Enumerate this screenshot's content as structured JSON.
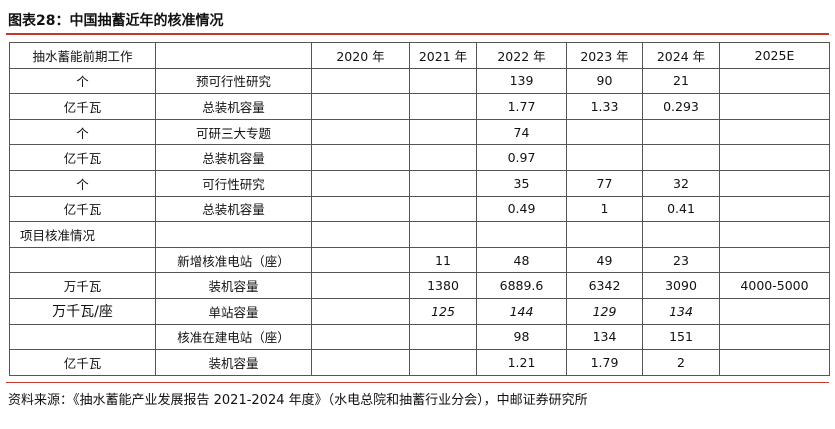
{
  "figure_title": "图表28：中国抽蓄近年的核准情况",
  "header": [
    "抽水蓄能前期工作",
    "",
    "2020 年",
    "2021 年",
    "2022 年",
    "2023 年",
    "2024 年",
    "2025E"
  ],
  "rows": [
    [
      "个",
      "预可行性研究",
      "",
      "",
      "139",
      "90",
      "21",
      ""
    ],
    [
      "亿千瓦",
      "总装机容量",
      "",
      "",
      "1.77",
      "1.33",
      "0.293",
      ""
    ],
    [
      "个",
      "可研三大专题",
      "",
      "",
      "74",
      "",
      "",
      ""
    ],
    [
      "亿千瓦",
      "总装机容量",
      "",
      "",
      "0.97",
      "",
      "",
      ""
    ],
    [
      "个",
      "可行性研究",
      "",
      "",
      "35",
      "77",
      "32",
      ""
    ],
    [
      "亿千瓦",
      "总装机容量",
      "",
      "",
      "0.49",
      "1",
      "0.41",
      ""
    ],
    [
      "项目核准情况",
      "",
      "",
      "",
      "",
      "",
      "",
      ""
    ],
    [
      "",
      "新增核准电站（座）",
      "",
      "11",
      "48",
      "49",
      "23",
      ""
    ],
    [
      "万千瓦",
      "装机容量",
      "",
      "1380",
      "6889.6",
      "6342",
      "3090",
      "4000-5000"
    ],
    [
      "万千瓦/座",
      "单站容量",
      "",
      "125",
      "144",
      "129",
      "134",
      ""
    ],
    [
      "",
      "核准在建电站（座）",
      "",
      "",
      "98",
      "134",
      "151",
      ""
    ],
    [
      "亿千瓦",
      "装机容量",
      "",
      "",
      "1.21",
      "1.79",
      "2",
      ""
    ]
  ],
  "source": "资料来源：《抽水蓄能产业发展报告 2021-2024 年度》（水电总院和抽蓄行业分会），中邮证券研究所"
}
